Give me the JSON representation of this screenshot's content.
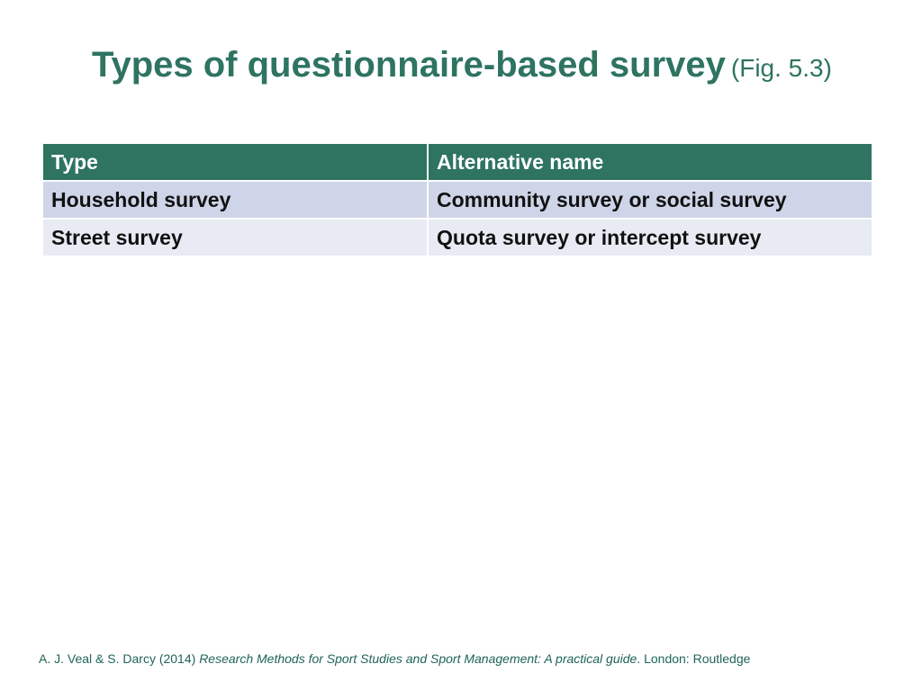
{
  "title": {
    "main": "Types of questionnaire-based survey",
    "figure_ref": "(Fig. 5.3)"
  },
  "table": {
    "headers": [
      "Type",
      "Alternative name"
    ],
    "rows": [
      [
        "Household survey",
        "Community survey or social survey"
      ],
      [
        "Street survey",
        "Quota survey or intercept survey"
      ]
    ]
  },
  "citation": {
    "authors_year": "A. J. Veal & S. Darcy (2014)",
    "book_title": "Research Methods for Sport Studies and Sport Management: A practical guide",
    "publisher": ". London: Routledge"
  },
  "colors": {
    "accent": "#2E7461",
    "row_odd": "#CFD5E8",
    "row_even": "#E9EBF4"
  }
}
